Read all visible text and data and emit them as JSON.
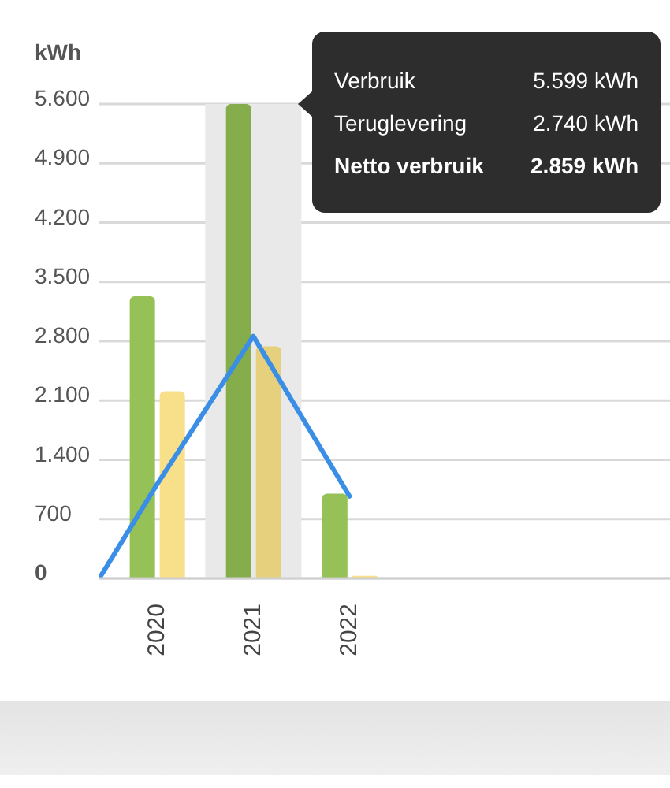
{
  "chart_data": {
    "type": "bar",
    "ylabel": "kWh",
    "x": [
      2020,
      2021,
      2022
    ],
    "xlim": [
      2019.4,
      2025.33
    ],
    "xticks": [
      2020,
      2021,
      2022
    ],
    "ylim": [
      0,
      5600
    ],
    "yticks": [
      0,
      700,
      {
        "value": 1400,
        "label": "1.400"
      },
      {
        "value": 2100,
        "label": "2.100"
      },
      {
        "value": 2800,
        "label": "2.800"
      },
      {
        "value": 3500,
        "label": "3.500"
      },
      {
        "value": 4200,
        "label": "4.200"
      },
      {
        "value": 4900,
        "label": "4.900"
      },
      {
        "value": 5600,
        "label": "5.600"
      }
    ],
    "series": [
      {
        "color": "#95c157",
        "colors": [
          "#95c157",
          "#86ad4b",
          "#95c157"
        ],
        "values": [
          3330,
          5599,
          1000
        ]
      },
      {
        "color": "#f8e08a",
        "colors": [
          "#f8e08a",
          "#e6d07d",
          "#f8e08a"
        ],
        "values": [
          2210,
          2740,
          30
        ]
      },
      {
        "type": "line",
        "color": "#3a8ee6",
        "x": [
          2019.4,
          2020,
          2021,
          2022
        ],
        "values": [
          0,
          1110,
          2859,
          970
        ]
      }
    ],
    "bands": [
      {
        "axis": "x",
        "from": 2020.5,
        "to": 2021.5,
        "color": "#e9e9e9"
      }
    ],
    "annotations": [
      "Verbruik",
      "5.599 kWh",
      "Teruglevering",
      "2.740 kWh",
      "Netto verbruik",
      "2.859 kWh"
    ],
    "grid": "y",
    "legend": false,
    "marker": "none",
    "line_style": "solid"
  }
}
